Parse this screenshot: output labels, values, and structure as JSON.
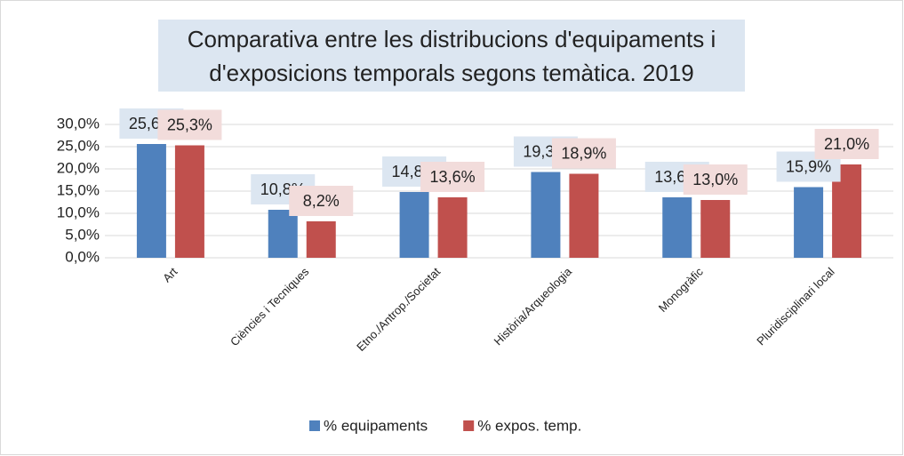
{
  "chart_data": {
    "type": "bar",
    "title": "Comparativa entre les distribucions d'equipaments i d'exposicions temporals segons temàtica. 2019",
    "categories": [
      "Art",
      "Ciències i Tecniques",
      "Etno./Antrop./Societat",
      "Història/Arqueologia",
      "Monogràfic",
      "Pluridisciplinari local"
    ],
    "series": [
      {
        "name": "% equipaments",
        "color": "#4f81bd",
        "label_background": "#dce6f1",
        "values": [
          25.6,
          10.8,
          14.8,
          19.3,
          13.6,
          15.9
        ],
        "value_labels": [
          "25,6%",
          "10,8%",
          "14,8%",
          "19,3%",
          "13,6%",
          "15,9%"
        ]
      },
      {
        "name": "% expos. temp.",
        "color": "#c0504d",
        "label_background": "#f2dcdb",
        "values": [
          25.3,
          8.2,
          13.6,
          18.9,
          13.0,
          21.0
        ],
        "value_labels": [
          "25,3%",
          "8,2%",
          "13,6%",
          "18,9%",
          "13,0%",
          "21,0%"
        ]
      }
    ],
    "ylim": [
      0,
      30
    ],
    "yticks": [
      {
        "value": 0,
        "label": "0,0%"
      },
      {
        "value": 5,
        "label": "5,0%"
      },
      {
        "value": 10,
        "label": "10,0%"
      },
      {
        "value": 15,
        "label": "15,0%"
      },
      {
        "value": 20,
        "label": "20,0%"
      },
      {
        "value": 25,
        "label": "25,0%"
      },
      {
        "value": 30,
        "label": "30,0%"
      }
    ],
    "grid": true,
    "legend": "bottom"
  }
}
